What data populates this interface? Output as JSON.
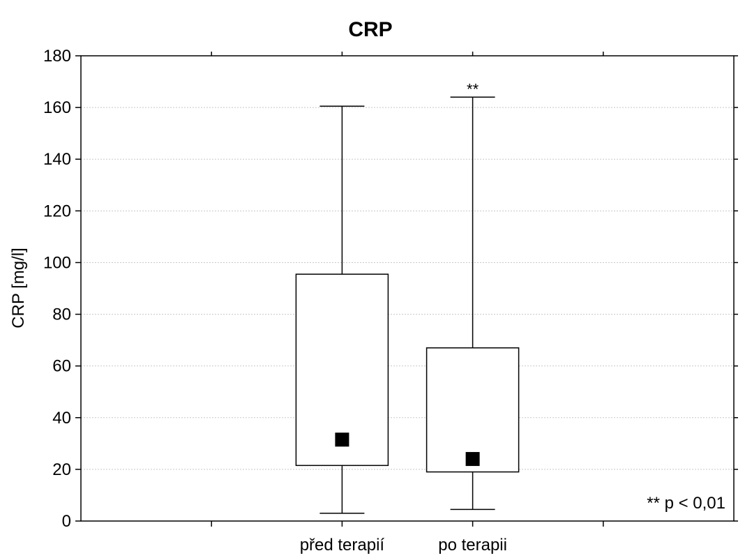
{
  "chart_data": {
    "type": "box",
    "title": "CRP",
    "ylabel": "CRP [mg/l]",
    "xlabel": "",
    "ylim": [
      0,
      180
    ],
    "yticks": [
      0,
      20,
      40,
      60,
      80,
      100,
      120,
      140,
      160,
      180
    ],
    "grid": true,
    "categories": [
      "před terapií",
      "po terapii"
    ],
    "category_positions": [
      2,
      3
    ],
    "x_range": [
      0,
      5
    ],
    "boxes": [
      {
        "category": "před terapií",
        "whisker_low": 3,
        "q1": 21.5,
        "median": 31.5,
        "q3": 95.5,
        "whisker_high": 160.5,
        "significance": ""
      },
      {
        "category": "po terapii",
        "whisker_low": 4.5,
        "q1": 19,
        "median": 24,
        "q3": 67,
        "whisker_high": 164,
        "significance": "**"
      }
    ],
    "annotation": "** p < 0,01",
    "colors": {
      "box_fill": "#ffffff",
      "stroke": "#000000",
      "median_marker": "#000000",
      "grid": "#c8c8c8"
    }
  }
}
